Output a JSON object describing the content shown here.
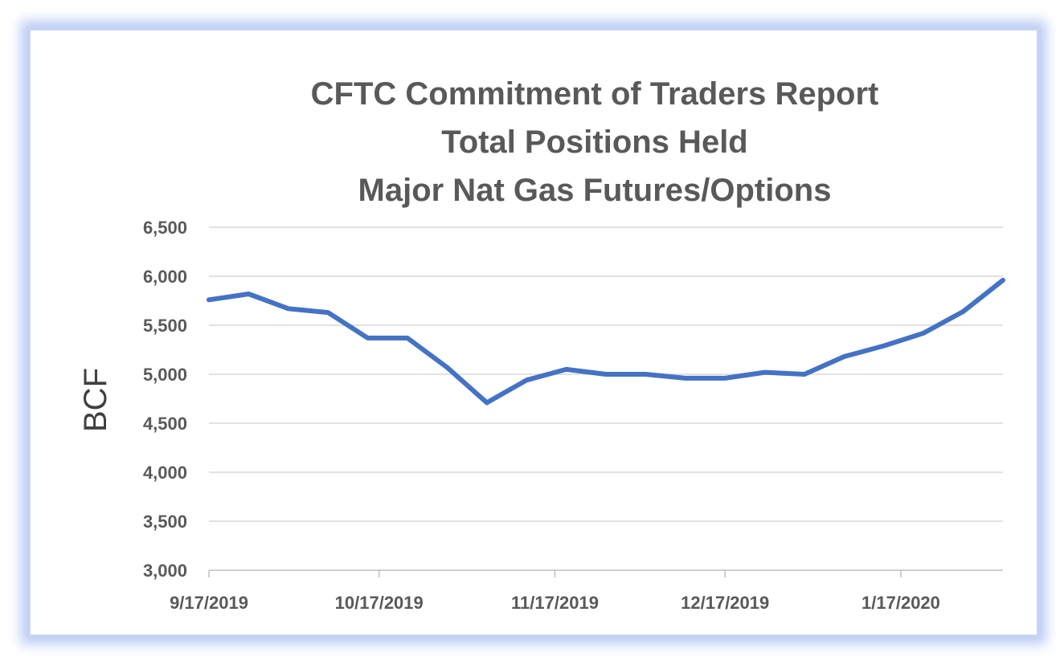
{
  "chart_data": {
    "type": "line",
    "title": [
      "CFTC Commitment of Traders Report",
      "Total Positions Held",
      "Major Nat Gas Futures/Options"
    ],
    "xlabel": "",
    "ylabel": "BCF",
    "ylim": [
      3000,
      6500
    ],
    "yticks": [
      3000,
      3500,
      4000,
      4500,
      5000,
      5500,
      6000,
      6500
    ],
    "ytick_labels": [
      "3,000",
      "3,500",
      "4,000",
      "4,500",
      "5,000",
      "5,500",
      "6,000",
      "6,500"
    ],
    "xlim": [
      "2019-09-17",
      "2020-02-04"
    ],
    "xticks": [
      "2019-09-17",
      "2019-10-17",
      "2019-11-17",
      "2019-12-17",
      "2020-01-17"
    ],
    "xtick_labels": [
      "9/17/2019",
      "10/17/2019",
      "11/17/2019",
      "12/17/2019",
      "1/17/2020"
    ],
    "grid": true,
    "legend": "none",
    "series": [
      {
        "color": "#4472c4",
        "x": [
          "2019-09-17",
          "2019-09-24",
          "2019-10-01",
          "2019-10-08",
          "2019-10-15",
          "2019-10-22",
          "2019-10-29",
          "2019-11-05",
          "2019-11-12",
          "2019-11-19",
          "2019-11-26",
          "2019-12-03",
          "2019-12-10",
          "2019-12-17",
          "2019-12-24",
          "2019-12-31",
          "2020-01-07",
          "2020-01-14",
          "2020-01-21",
          "2020-01-28",
          "2020-02-04"
        ],
        "y": [
          5760,
          5820,
          5670,
          5630,
          5370,
          5370,
          5070,
          4710,
          4940,
          5050,
          5000,
          5000,
          4960,
          4960,
          5020,
          5000,
          5180,
          5290,
          5420,
          5640,
          5960
        ]
      }
    ]
  }
}
